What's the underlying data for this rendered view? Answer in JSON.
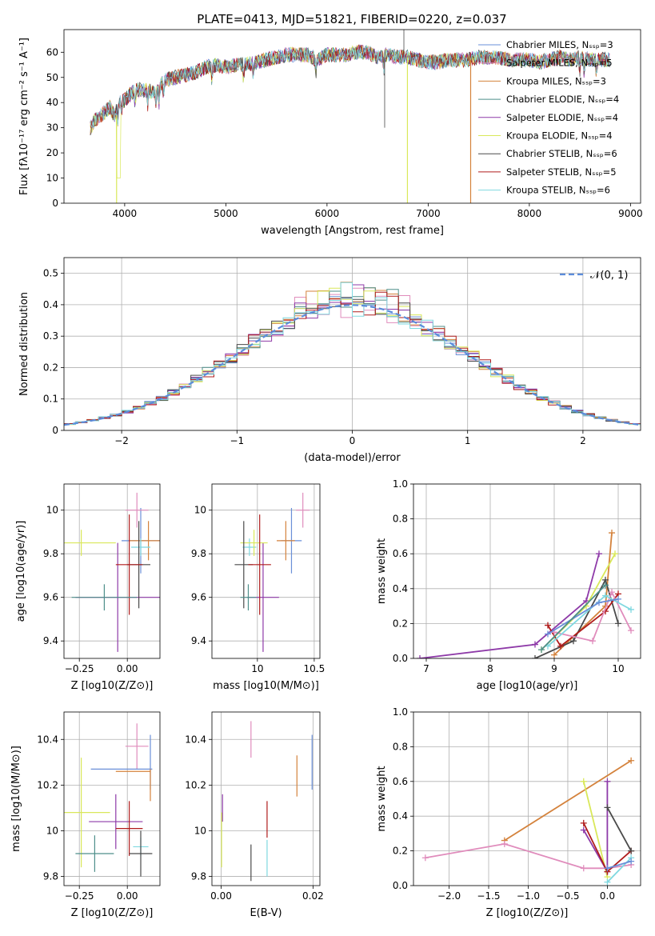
{
  "figure": {
    "title": "PLATE=0413, MJD=51821, FIBERID=0220, z=0.037"
  },
  "chart_data": [
    {
      "id": "spectrum",
      "type": "line",
      "xlabel": "wavelength [Angstrom, rest frame]",
      "ylabel": "Flux [fλ10⁻¹⁷ erg cm⁻² s⁻¹ A⁻¹]",
      "xlim": [
        3400,
        9100
      ],
      "ylim": [
        0,
        69
      ],
      "xticks": [
        4000,
        5000,
        6000,
        7000,
        8000,
        9000
      ],
      "yticks": [
        0,
        10,
        20,
        30,
        40,
        50,
        60
      ],
      "grid": false,
      "legend_position": "top-right",
      "series": [
        {
          "name": "Chabrier MILES, N_SSP=3",
          "color": "#6a8fd8"
        },
        {
          "name": "Salpeter MILES, N_SSP=5",
          "color": "#e08cbc"
        },
        {
          "name": "Kroupa MILES, N_SSP=3",
          "color": "#d4823c"
        },
        {
          "name": "Chabrier ELODIE, N_SSP=4",
          "color": "#4e8f8a"
        },
        {
          "name": "Salpeter ELODIE, N_SSP=4",
          "color": "#8e3aa8"
        },
        {
          "name": "Kroupa ELODIE, N_SSP=4",
          "color": "#d9e85a"
        },
        {
          "name": "Chabrier STELIB, N_SSP=6",
          "color": "#4a4a4a"
        },
        {
          "name": "Salpeter STELIB, N_SSP=5",
          "color": "#b01c1c"
        },
        {
          "name": "Kroupa STELIB, N_SSP=6",
          "color": "#7fd8e0"
        }
      ],
      "continuum": [
        [
          3660,
          30
        ],
        [
          3700,
          33
        ],
        [
          3800,
          36
        ],
        [
          3850,
          38
        ],
        [
          3900,
          35
        ],
        [
          3950,
          40
        ],
        [
          4000,
          41
        ],
        [
          4100,
          45
        ],
        [
          4200,
          45
        ],
        [
          4300,
          44
        ],
        [
          4400,
          49
        ],
        [
          4500,
          50
        ],
        [
          4600,
          51
        ],
        [
          4700,
          52
        ],
        [
          4800,
          54
        ],
        [
          4900,
          55
        ],
        [
          5000,
          54
        ],
        [
          5100,
          55
        ],
        [
          5200,
          55
        ],
        [
          5300,
          56
        ],
        [
          5400,
          57
        ],
        [
          5500,
          58
        ],
        [
          5600,
          59
        ],
        [
          5700,
          59
        ],
        [
          5800,
          59
        ],
        [
          5900,
          57
        ],
        [
          6000,
          59
        ],
        [
          6100,
          59
        ],
        [
          6200,
          59
        ],
        [
          6300,
          60
        ],
        [
          6400,
          60
        ],
        [
          6500,
          58
        ],
        [
          6600,
          59
        ],
        [
          6700,
          58
        ],
        [
          6800,
          58
        ],
        [
          6900,
          57
        ],
        [
          7000,
          56
        ],
        [
          7100,
          56
        ],
        [
          7200,
          57
        ],
        [
          7300,
          57
        ],
        [
          7400,
          57
        ],
        [
          7500,
          58
        ],
        [
          7600,
          58
        ],
        [
          7700,
          58
        ],
        [
          7800,
          57
        ],
        [
          7900,
          57
        ],
        [
          8000,
          57
        ],
        [
          8100,
          56
        ],
        [
          8200,
          57
        ],
        [
          8300,
          58
        ],
        [
          8400,
          57
        ],
        [
          8500,
          58
        ],
        [
          8600,
          57
        ],
        [
          8700,
          57
        ],
        [
          8800,
          57
        ]
      ]
    },
    {
      "id": "residuals",
      "type": "bar",
      "xlabel": "(data-model)/error",
      "ylabel": "Normed distribution",
      "xlim": [
        -2.5,
        2.5
      ],
      "ylim": [
        0,
        0.55
      ],
      "xticks": [
        -2,
        -1,
        0,
        1,
        2
      ],
      "yticks": [
        0.0,
        0.1,
        0.2,
        0.3,
        0.4,
        0.5
      ],
      "grid": true,
      "bin_width": 0.1,
      "legend_position": "top-right",
      "reference_curve": {
        "name": "𝒩(0, 1)",
        "color": "#5b8cdb",
        "mu": 0,
        "sigma": 1
      }
    },
    {
      "id": "age-vs-Z",
      "type": "scatter",
      "xlabel": "Z [log10(Z/Z⊙)]",
      "ylabel": "age  [log10(age/yr)]",
      "xlim": [
        -0.33,
        0.17
      ],
      "ylim": [
        9.32,
        10.12
      ],
      "xticks": [
        -0.25,
        0.0
      ],
      "xtick_labels": [
        "−0.25",
        "0.00"
      ],
      "yticks": [
        9.4,
        9.6,
        9.8,
        10.0
      ],
      "grid": true,
      "points": [
        {
          "x": 0.07,
          "y": 9.86,
          "xerr": 0.1,
          "yerr": 0.15,
          "color": "#6a8fd8"
        },
        {
          "x": 0.05,
          "y": 10.0,
          "xerr": 0.06,
          "yerr": 0.08,
          "color": "#e08cbc"
        },
        {
          "x": 0.11,
          "y": 9.86,
          "xerr": 0.1,
          "yerr": 0.09,
          "color": "#d4823c"
        },
        {
          "x": 0.07,
          "y": 9.83,
          "xerr": 0.05,
          "yerr": 0.04,
          "color": "#7fd8e0"
        },
        {
          "x": -0.05,
          "y": 9.6,
          "xerr": 0.22,
          "yerr": 0.25,
          "color": "#8e3aa8"
        },
        {
          "x": -0.24,
          "y": 9.85,
          "xerr": 0.18,
          "yerr": 0.06,
          "color": "#d9e85a"
        },
        {
          "x": 0.06,
          "y": 9.75,
          "xerr": 0.06,
          "yerr": 0.2,
          "color": "#4a4a4a"
        },
        {
          "x": 0.01,
          "y": 9.75,
          "xerr": 0.07,
          "yerr": 0.23,
          "color": "#b01c1c"
        },
        {
          "x": -0.12,
          "y": 9.6,
          "xerr": 0.17,
          "yerr": 0.06,
          "color": "#4e8f8a"
        }
      ]
    },
    {
      "id": "age-vs-mass",
      "type": "scatter",
      "xlabel": "mass [log10(M/M⊙)]",
      "ylabel": "",
      "xlim": [
        9.6,
        10.55
      ],
      "ylim": [
        9.32,
        10.12
      ],
      "xticks": [
        10.0,
        10.5
      ],
      "yticks": [
        9.4,
        9.6,
        9.8,
        10.0
      ],
      "grid": true,
      "points": [
        {
          "x": 10.3,
          "y": 9.86,
          "xerr": 0.09,
          "yerr": 0.15,
          "color": "#6a8fd8"
        },
        {
          "x": 10.4,
          "y": 10.0,
          "xerr": 0.06,
          "yerr": 0.08,
          "color": "#e08cbc"
        },
        {
          "x": 10.25,
          "y": 9.86,
          "xerr": 0.08,
          "yerr": 0.09,
          "color": "#d4823c"
        },
        {
          "x": 9.93,
          "y": 9.83,
          "xerr": 0.06,
          "yerr": 0.04,
          "color": "#7fd8e0"
        },
        {
          "x": 10.05,
          "y": 9.6,
          "xerr": 0.14,
          "yerr": 0.25,
          "color": "#8e3aa8"
        },
        {
          "x": 9.97,
          "y": 9.85,
          "xerr": 0.12,
          "yerr": 0.06,
          "color": "#d9e85a"
        },
        {
          "x": 9.88,
          "y": 9.75,
          "xerr": 0.08,
          "yerr": 0.2,
          "color": "#4a4a4a"
        },
        {
          "x": 10.02,
          "y": 9.75,
          "xerr": 0.1,
          "yerr": 0.23,
          "color": "#b01c1c"
        },
        {
          "x": 9.92,
          "y": 9.6,
          "xerr": 0.07,
          "yerr": 0.06,
          "color": "#4e8f8a"
        }
      ]
    },
    {
      "id": "weight-vs-age",
      "type": "line",
      "xlabel": "age  [log10(age/yr)]",
      "ylabel": "mass weight",
      "xlim": [
        6.8,
        10.35
      ],
      "ylim": [
        0,
        1
      ],
      "xticks": [
        7,
        8,
        9,
        10
      ],
      "yticks": [
        0.0,
        0.2,
        0.4,
        0.6,
        0.8,
        1.0
      ],
      "grid": true,
      "series": [
        {
          "color": "#8e3aa8",
          "x": [
            6.9,
            8.7,
            9.5,
            9.7
          ],
          "y": [
            0.0,
            0.08,
            0.33,
            0.6
          ]
        },
        {
          "color": "#d4823c",
          "x": [
            9.0,
            9.8,
            9.9
          ],
          "y": [
            0.02,
            0.3,
            0.72
          ]
        },
        {
          "color": "#d9e85a",
          "x": [
            8.8,
            9.5,
            9.95
          ],
          "y": [
            0.05,
            0.3,
            0.6
          ]
        },
        {
          "color": "#4a4a4a",
          "x": [
            8.7,
            9.3,
            9.8,
            10.0
          ],
          "y": [
            0.0,
            0.1,
            0.45,
            0.2
          ]
        },
        {
          "color": "#b01c1c",
          "x": [
            8.9,
            9.1,
            9.8,
            10.0
          ],
          "y": [
            0.19,
            0.07,
            0.27,
            0.37
          ]
        },
        {
          "color": "#e08cbc",
          "x": [
            9.0,
            9.6,
            9.9,
            10.2
          ],
          "y": [
            0.15,
            0.1,
            0.38,
            0.16
          ]
        },
        {
          "color": "#7fd8e0",
          "x": [
            8.9,
            9.8,
            10.2
          ],
          "y": [
            0.07,
            0.36,
            0.28
          ]
        },
        {
          "color": "#6a8fd8",
          "x": [
            8.9,
            9.7,
            10.0
          ],
          "y": [
            0.14,
            0.32,
            0.34
          ]
        },
        {
          "color": "#4e8f8a",
          "x": [
            8.8,
            9.8
          ],
          "y": [
            0.05,
            0.42
          ]
        }
      ]
    },
    {
      "id": "mass-vs-Z",
      "type": "scatter",
      "xlabel": "Z [log10(Z/Z⊙)]",
      "ylabel": "mass [log10(M/M⊙)]",
      "xlim": [
        -0.33,
        0.17
      ],
      "ylim": [
        9.76,
        10.52
      ],
      "xticks": [
        -0.25,
        0.0
      ],
      "xtick_labels": [
        "−0.25",
        "0.00"
      ],
      "yticks": [
        9.8,
        10.0,
        10.2,
        10.4
      ],
      "grid": true,
      "points": [
        {
          "x": 0.05,
          "y": 10.37,
          "xerr": 0.06,
          "yerr": 0.1,
          "color": "#e08cbc"
        },
        {
          "x": -0.03,
          "y": 10.27,
          "xerr": 0.16,
          "yerr": 0.0,
          "color": "#6a8fd8"
        },
        {
          "x": 0.12,
          "y": 10.3,
          "xerr": 0.0,
          "yerr": 0.12,
          "color": "#6a8fd8"
        },
        {
          "x": 0.03,
          "y": 10.26,
          "xerr": 0.09,
          "yerr": 0.0,
          "color": "#d4823c"
        },
        {
          "x": 0.12,
          "y": 10.2,
          "xerr": 0.0,
          "yerr": 0.07,
          "color": "#d4823c"
        },
        {
          "x": -0.06,
          "y": 10.04,
          "xerr": 0.14,
          "yerr": 0.12,
          "color": "#8e3aa8"
        },
        {
          "x": -0.24,
          "y": 10.08,
          "xerr": 0.15,
          "yerr": 0.24,
          "color": "#d9e85a"
        },
        {
          "x": 0.01,
          "y": 10.01,
          "xerr": 0.07,
          "yerr": 0.12,
          "color": "#b01c1c"
        },
        {
          "x": 0.07,
          "y": 9.93,
          "xerr": 0.04,
          "yerr": 0.04,
          "color": "#7fd8e0"
        },
        {
          "x": 0.07,
          "y": 9.9,
          "xerr": 0.06,
          "yerr": 0.1,
          "color": "#4a4a4a"
        },
        {
          "x": -0.17,
          "y": 9.9,
          "xerr": 0.1,
          "yerr": 0.08,
          "color": "#4e8f8a"
        }
      ]
    },
    {
      "id": "mass-vs-EBV",
      "type": "scatter",
      "xlabel": "E(B-V)",
      "ylabel": "",
      "xlim": [
        -0.002,
        0.0215
      ],
      "ylim": [
        9.76,
        10.52
      ],
      "xticks": [
        0.0,
        0.02
      ],
      "xtick_labels": [
        "0.00",
        "0.02"
      ],
      "yticks": [
        9.8,
        10.0,
        10.2,
        10.4
      ],
      "grid": true,
      "points": [
        {
          "x": 0.0065,
          "y": 10.4,
          "xerr": 0,
          "yerr": 0.08,
          "color": "#e08cbc"
        },
        {
          "x": 0.0198,
          "y": 10.3,
          "xerr": 0,
          "yerr": 0.12,
          "color": "#6a8fd8"
        },
        {
          "x": 0.0165,
          "y": 10.24,
          "xerr": 0,
          "yerr": 0.09,
          "color": "#d4823c"
        },
        {
          "x": 0.0003,
          "y": 10.1,
          "xerr": 0,
          "yerr": 0.06,
          "color": "#8e3aa8"
        },
        {
          "x": 0.0001,
          "y": 9.96,
          "xerr": 0,
          "yerr": 0.12,
          "color": "#d9e85a"
        },
        {
          "x": 0.01,
          "y": 10.05,
          "xerr": 0,
          "yerr": 0.08,
          "color": "#b01c1c"
        },
        {
          "x": 0.01,
          "y": 9.88,
          "xerr": 0,
          "yerr": 0.08,
          "color": "#7fd8e0"
        },
        {
          "x": 0.0065,
          "y": 9.86,
          "xerr": 0,
          "yerr": 0.08,
          "color": "#4a4a4a"
        }
      ]
    },
    {
      "id": "weight-vs-Z",
      "type": "line",
      "xlabel": "Z [log10(Z/Z⊙)]",
      "ylabel": "mass weight",
      "xlim": [
        -2.45,
        0.42
      ],
      "ylim": [
        0,
        1
      ],
      "xticks": [
        -2.0,
        -1.5,
        -1.0,
        -0.5,
        0.0
      ],
      "xtick_labels": [
        "−2.0",
        "−1.5",
        "−1.0",
        "−0.5",
        "0.0"
      ],
      "yticks": [
        0.0,
        0.2,
        0.4,
        0.6,
        0.8,
        1.0
      ],
      "grid": true,
      "series": [
        {
          "color": "#d4823c",
          "x": [
            -1.3,
            0.3
          ],
          "y": [
            0.26,
            0.72
          ]
        },
        {
          "color": "#e08cbc",
          "x": [
            -2.3,
            -1.3,
            -0.3,
            0.0,
            0.3
          ],
          "y": [
            0.16,
            0.24,
            0.1,
            0.1,
            0.12
          ]
        },
        {
          "color": "#d9e85a",
          "x": [
            -0.3,
            0.0
          ],
          "y": [
            0.6,
            0.05
          ]
        },
        {
          "color": "#8e3aa8",
          "x": [
            -0.3,
            0.0,
            0.0
          ],
          "y": [
            0.32,
            0.08,
            0.6
          ]
        },
        {
          "color": "#b01c1c",
          "x": [
            -0.3,
            0.0,
            0.3
          ],
          "y": [
            0.36,
            0.08,
            0.2
          ]
        },
        {
          "color": "#7fd8e0",
          "x": [
            0.0,
            0.3
          ],
          "y": [
            0.02,
            0.16
          ]
        },
        {
          "color": "#4a4a4a",
          "x": [
            0.0,
            0.3
          ],
          "y": [
            0.45,
            0.2
          ]
        },
        {
          "color": "#6a8fd8",
          "x": [
            0.0,
            0.3
          ],
          "y": [
            0.1,
            0.14
          ]
        }
      ]
    }
  ]
}
